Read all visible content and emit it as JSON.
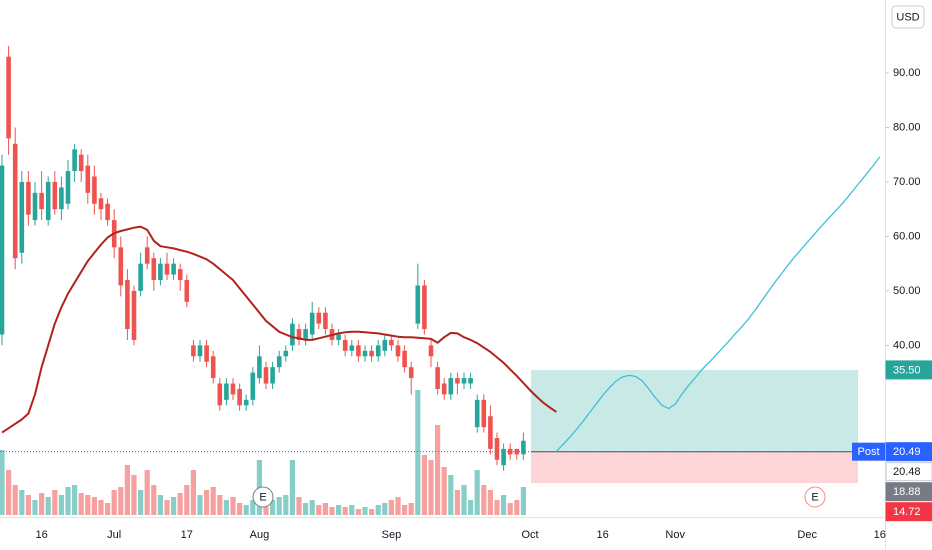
{
  "chart_data": {
    "type": "candlestick",
    "currency": "USD",
    "up_color": "#26a69a",
    "down_color": "#ef5350",
    "categories": [
      null,
      null,
      null,
      null,
      null,
      null,
      "16",
      null,
      null,
      null,
      null,
      null,
      null,
      null,
      null,
      null,
      null,
      "Jul",
      null,
      null,
      null,
      null,
      null,
      null,
      null,
      null,
      null,
      null,
      "17",
      null,
      null,
      null,
      null,
      null,
      null,
      null,
      null,
      null,
      null,
      "Aug",
      null,
      null,
      null,
      null,
      null,
      null,
      null,
      null,
      null,
      null,
      null,
      null,
      null,
      null,
      null,
      null,
      null,
      null,
      null,
      "Sep",
      null,
      null,
      null,
      null,
      null,
      null,
      null,
      null,
      null,
      null,
      null,
      null,
      null,
      null,
      null,
      null,
      null,
      null,
      null,
      null,
      "Oct",
      null,
      null,
      null,
      null,
      null,
      null,
      null,
      null,
      null,
      null,
      "16",
      null,
      null,
      null,
      null,
      null,
      null,
      null,
      null,
      null,
      null,
      "Nov",
      null,
      null,
      null,
      null,
      null,
      null,
      null,
      null,
      null,
      null,
      null,
      null,
      null,
      null,
      null,
      null,
      null,
      null,
      null,
      "Dec",
      null,
      null,
      null,
      null,
      null,
      null,
      null,
      null,
      null,
      null,
      "16"
    ],
    "open": [
      42,
      93,
      77,
      57,
      70,
      63,
      68,
      63,
      70,
      65,
      66,
      72,
      75,
      73,
      71,
      67,
      66,
      63,
      58,
      52,
      50,
      50,
      58,
      56,
      52,
      55,
      53,
      54,
      52,
      40,
      38,
      40,
      38,
      33,
      30,
      33,
      32,
      29,
      30,
      34,
      36,
      33,
      36,
      38,
      40,
      43,
      41,
      42,
      46,
      46,
      43,
      41,
      41,
      39,
      40,
      38,
      39,
      38,
      39,
      41,
      40,
      39,
      36,
      44,
      51,
      40,
      36,
      33,
      31,
      34,
      33,
      33,
      25,
      30,
      27,
      23,
      18,
      21,
      21,
      20,
      null,
      null,
      null,
      null,
      null,
      null,
      null,
      null,
      null,
      null,
      null,
      null,
      null,
      null,
      null,
      null,
      null,
      null,
      null,
      null,
      null,
      null,
      null,
      null,
      null,
      null,
      null,
      null,
      null,
      null,
      null,
      null,
      null,
      null,
      null,
      null,
      null,
      null,
      null,
      null,
      null,
      null,
      null,
      null,
      null,
      null,
      null,
      null,
      null,
      null,
      null,
      null,
      null,
      null
    ],
    "high": [
      75,
      95,
      80,
      72,
      72,
      70,
      72,
      71,
      72,
      71,
      74,
      77,
      76,
      75,
      73,
      68,
      67,
      65,
      60,
      54,
      51,
      57,
      60,
      57,
      56,
      57,
      56,
      55,
      53,
      41,
      41,
      41,
      39,
      34,
      34,
      34,
      33,
      31,
      36,
      40,
      37,
      37,
      39,
      40,
      45,
      44,
      44,
      48,
      47,
      47,
      44,
      43,
      42,
      41,
      41,
      40,
      40,
      41,
      42,
      42,
      41,
      40,
      37,
      55,
      52,
      41,
      37,
      34,
      35,
      35,
      35,
      35,
      31,
      31,
      29,
      24,
      22,
      22,
      21,
      24,
      null,
      null,
      null,
      null,
      null,
      null,
      null,
      null,
      null,
      null,
      null,
      null,
      null,
      null,
      null,
      null,
      null,
      null,
      null,
      null,
      null,
      null,
      null,
      null,
      null,
      null,
      null,
      null,
      null,
      null,
      null,
      null,
      null,
      null,
      null,
      null,
      null,
      null,
      null,
      null,
      null,
      null,
      null,
      null,
      null,
      null,
      null,
      null,
      null,
      null,
      null,
      null,
      null,
      null
    ],
    "low": [
      40,
      75,
      54,
      55,
      62,
      62,
      63,
      62,
      64,
      63,
      65,
      70,
      70,
      66,
      64,
      63,
      62,
      56,
      49,
      41,
      40,
      49,
      54,
      50,
      51,
      52,
      52,
      50,
      47,
      37,
      37,
      36,
      33,
      28,
      29,
      30,
      28,
      28,
      29,
      33,
      32,
      32,
      35,
      37,
      39,
      40,
      40,
      41,
      43,
      42,
      40,
      40,
      38,
      38,
      37,
      37,
      37,
      37,
      38,
      39,
      37,
      35,
      31,
      43,
      42,
      36,
      31,
      30,
      30,
      31,
      32,
      32,
      24,
      24,
      20,
      18,
      17,
      19,
      19,
      19,
      null,
      null,
      null,
      null,
      null,
      null,
      null,
      null,
      null,
      null,
      null,
      null,
      null,
      null,
      null,
      null,
      null,
      null,
      null,
      null,
      null,
      null,
      null,
      null,
      null,
      null,
      null,
      null,
      null,
      null,
      null,
      null,
      null,
      null,
      null,
      null,
      null,
      null,
      null,
      null,
      null,
      null,
      null,
      null,
      null,
      null,
      null,
      null,
      null,
      null,
      null,
      null,
      null,
      null
    ],
    "close": [
      73,
      78,
      56,
      70,
      64,
      68,
      65,
      70,
      65,
      69,
      72,
      76,
      72,
      68,
      66,
      65,
      63,
      58,
      51,
      43,
      41,
      55,
      55,
      52,
      55,
      53,
      55,
      52,
      48,
      38,
      40,
      37,
      34,
      29,
      33,
      31,
      29,
      30,
      35,
      38,
      33,
      36,
      38,
      39,
      44,
      41,
      43,
      46,
      44,
      43,
      41,
      42,
      39,
      40,
      38,
      39,
      38,
      40,
      41,
      40,
      38,
      36,
      34,
      51,
      43,
      38,
      32,
      31,
      34,
      33,
      34,
      34,
      30,
      25,
      21,
      19,
      21,
      20,
      20,
      22.5,
      null,
      null,
      null,
      null,
      null,
      null,
      null,
      null,
      null,
      null,
      null,
      null,
      null,
      null,
      null,
      null,
      null,
      null,
      null,
      null,
      null,
      null,
      null,
      null,
      null,
      null,
      null,
      null,
      null,
      null,
      null,
      null,
      null,
      null,
      null,
      null,
      null,
      null,
      null,
      null,
      null,
      null,
      null,
      null,
      null,
      null,
      null,
      null,
      null,
      null,
      null,
      null,
      null,
      null
    ],
    "volume": [
      65,
      45,
      30,
      25,
      20,
      15,
      22,
      18,
      25,
      20,
      28,
      30,
      22,
      20,
      18,
      15,
      12,
      25,
      28,
      50,
      40,
      25,
      45,
      30,
      20,
      15,
      18,
      22,
      30,
      45,
      20,
      25,
      28,
      20,
      15,
      18,
      12,
      10,
      15,
      55,
      25,
      15,
      18,
      20,
      55,
      18,
      12,
      15,
      10,
      12,
      8,
      10,
      8,
      10,
      6,
      8,
      6,
      10,
      12,
      15,
      18,
      10,
      12,
      125,
      60,
      55,
      90,
      48,
      40,
      25,
      30,
      15,
      45,
      30,
      25,
      15,
      20,
      12,
      15,
      28,
      null,
      null,
      null,
      null,
      null,
      null,
      null,
      null,
      null,
      null,
      null,
      null,
      null,
      null,
      null,
      null,
      null,
      null,
      null,
      null,
      null,
      null,
      null,
      null,
      null,
      null,
      null,
      null,
      null,
      null,
      null,
      null,
      null,
      null,
      null,
      null,
      null,
      null,
      null,
      null,
      null,
      null,
      null,
      null,
      null,
      null,
      null,
      null,
      null,
      null,
      null,
      null,
      null,
      null
    ],
    "ma": {
      "color": "#b2221e",
      "values": [
        24,
        24.8,
        25.6,
        26.4,
        27.5,
        31,
        36,
        40,
        44,
        47,
        49.5,
        51.5,
        53.5,
        55.5,
        57,
        58.5,
        59.8,
        60.6,
        61,
        61.3,
        61.6,
        61.8,
        61.2,
        59.2,
        58.2,
        58,
        57.8,
        57.5,
        57.2,
        56.8,
        56.3,
        55.8,
        55,
        54,
        53,
        52,
        50.5,
        49,
        47.5,
        46,
        44.5,
        43.5,
        42.5,
        42,
        41.5,
        41.3,
        41,
        41,
        41.3,
        41.6,
        41.9,
        42.2,
        42.4,
        42.5,
        42.5,
        42.4,
        42.3,
        42.2,
        42,
        41.8,
        41.6,
        41.5,
        41.5,
        41.4,
        41.3,
        41.2,
        40.5,
        41.5,
        42.3,
        42.2,
        41.5,
        41,
        40.4,
        39.6,
        38.8,
        37.8,
        36.8,
        35.6,
        34.4,
        33.1,
        31.8,
        30.6,
        29.5,
        28.6,
        27.8,
        null,
        null,
        null,
        null,
        null,
        null,
        null,
        null,
        null,
        null,
        null,
        null,
        null,
        null,
        null,
        null,
        null,
        null,
        null,
        null,
        null,
        null,
        null,
        null,
        null,
        null,
        null,
        null,
        null,
        null,
        null,
        null,
        null,
        null,
        null,
        null,
        null,
        null,
        null,
        null,
        null,
        null,
        null,
        null,
        null,
        null,
        null,
        null,
        null
      ]
    },
    "forecast": {
      "color": "#3fc1d6",
      "values": [
        null,
        null,
        null,
        null,
        null,
        null,
        null,
        null,
        null,
        null,
        null,
        null,
        null,
        null,
        null,
        null,
        null,
        null,
        null,
        null,
        null,
        null,
        null,
        null,
        null,
        null,
        null,
        null,
        null,
        null,
        null,
        null,
        null,
        null,
        null,
        null,
        null,
        null,
        null,
        null,
        null,
        null,
        null,
        null,
        null,
        null,
        null,
        null,
        null,
        null,
        null,
        null,
        null,
        null,
        null,
        null,
        null,
        null,
        null,
        null,
        null,
        null,
        null,
        null,
        null,
        null,
        null,
        null,
        null,
        null,
        null,
        null,
        null,
        null,
        null,
        null,
        null,
        null,
        null,
        null,
        null,
        null,
        null,
        null,
        20.5,
        21.8,
        23.1,
        24.5,
        26,
        27.6,
        29.2,
        30.8,
        32.2,
        33.4,
        34.2,
        34.5,
        34.3,
        33.5,
        32,
        30.4,
        29,
        28.4,
        29.2,
        31,
        32.6,
        34,
        35.5,
        36.7,
        38,
        39.3,
        40.6,
        42,
        43.3,
        44.7,
        46.3,
        48,
        49.7,
        51.4,
        53,
        54.6,
        56.1,
        57.5,
        58.9,
        60.3,
        61.7,
        63,
        64.3,
        65.6,
        67,
        68.5,
        70,
        71.5,
        73,
        74.6
      ]
    },
    "zone": {
      "target": 35.5,
      "entry": 20.48,
      "stop": 14.72,
      "target_color": "#b2dfdb",
      "stop_color": "#fccbcd"
    },
    "last_price": {
      "value": 20.49,
      "tag": "Post",
      "color": "#2962ff"
    },
    "price_labels": [
      {
        "value": 35.5,
        "label": "35.50",
        "color": "#26a69a",
        "text_color": "#ffffff"
      },
      {
        "value": 20.49,
        "label": "20.49",
        "color": "#2962ff",
        "text_color": "#ffffff"
      },
      {
        "value": 20.48,
        "label": "20.48",
        "color": "#ffffff",
        "text_color": "#131722"
      },
      {
        "value": 18.88,
        "label": "18.88",
        "color": "#787b86",
        "text_color": "#ffffff"
      },
      {
        "value": 14.72,
        "label": "14.72",
        "color": "#f23645",
        "text_color": "#ffffff"
      }
    ],
    "events": [
      {
        "label": "E",
        "color": "#787b86"
      },
      {
        "label": "E",
        "color": "#f28b82"
      }
    ],
    "ylim": [
      8.5,
      103.4
    ],
    "yticks": [
      {
        "value": 40,
        "label": "40.00"
      },
      {
        "value": 50,
        "label": "50.00"
      },
      {
        "value": 60,
        "label": "60.00"
      },
      {
        "value": 70,
        "label": "70.00"
      },
      {
        "value": 80,
        "label": "80.00"
      },
      {
        "value": 90,
        "label": "90.00"
      }
    ],
    "grid": false
  }
}
